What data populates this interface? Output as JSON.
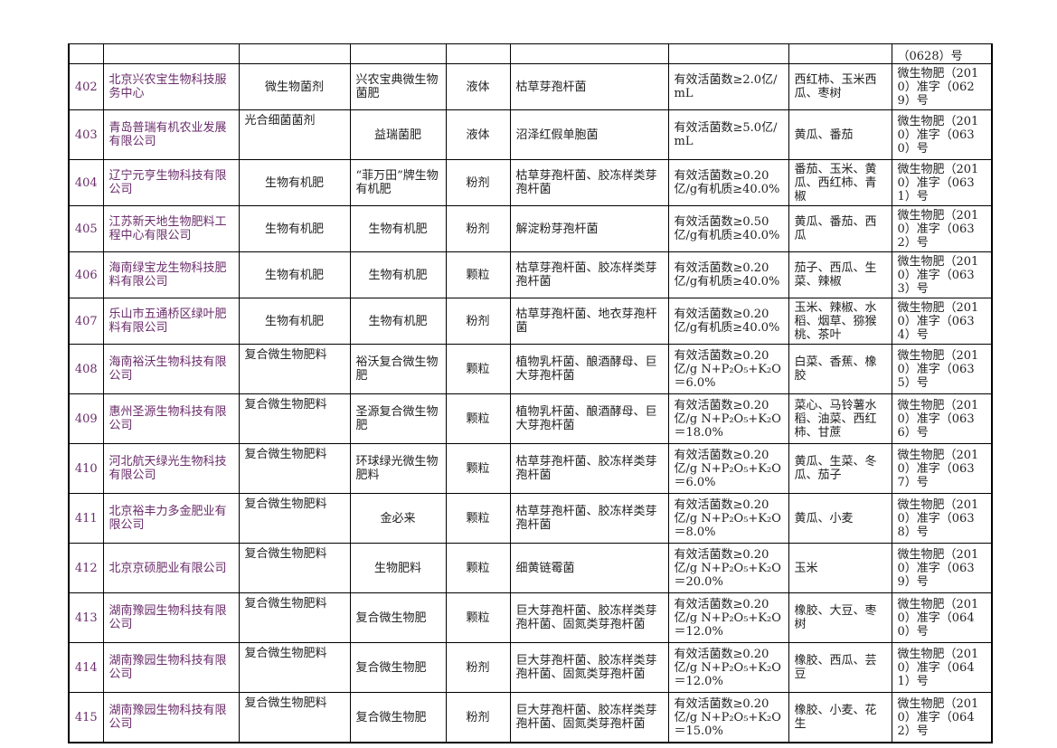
{
  "table": {
    "continued_row": {
      "approval_tail": "（0628）号"
    },
    "rows": [
      [
        402,
        "北京兴农宝生物科技服务中心",
        "微生物菌剂",
        "兴农宝典微生物菌肥",
        "液体",
        "枯草芽孢杆菌",
        "有效活菌数≥2.0亿/mL",
        "西红柿、玉米西瓜、枣树",
        "微生物肥（2010）准字（0629）号"
      ],
      [
        403,
        "青岛普瑞有机农业发展有限公司",
        "光合细菌菌剂",
        "益瑞菌肥",
        "液体",
        "沼泽红假单胞菌",
        "有效活菌数≥5.0亿/mL",
        "黄瓜、番茄",
        "微生物肥（2010）准字（0630）号"
      ],
      [
        404,
        "辽宁元亨生物科技有限公司",
        "生物有机肥",
        "“菲万田”牌生物有机肥",
        "粉剂",
        "枯草芽孢杆菌、胶冻样类芽孢杆菌",
        "有效活菌数≥0.20亿/g有机质≥40.0%",
        "番茄、玉米、黄瓜、西红柿、青椒",
        "微生物肥（2010）准字（0631）号"
      ],
      [
        405,
        "江苏新天地生物肥料工程中心有限公司",
        "生物有机肥",
        "生物有机肥",
        "粉剂",
        "解淀粉芽孢杆菌",
        "有效活菌数≥0.50亿/g有机质≥40.0%",
        "黄瓜、番茄、西瓜",
        "微生物肥（2010）准字（0632）号"
      ],
      [
        406,
        "海南绿宝龙生物科技肥料有限公司",
        "生物有机肥",
        "生物有机肥",
        "颗粒",
        "枯草芽孢杆菌、胶冻样类芽孢杆菌",
        "有效活菌数≥0.20亿/g有机质≥40.0%",
        "茄子、西瓜、生菜、辣椒",
        "微生物肥（2010）准字（0633）号"
      ],
      [
        407,
        "乐山市五通桥区绿叶肥料有限公司",
        "生物有机肥",
        "生物有机肥",
        "粉剂",
        "枯草芽孢杆菌、地衣芽孢杆菌",
        "有效活菌数≥0.20亿/g有机质≥40.0%",
        "玉米、辣椒、水稻、烟草、猕猴桃、茶叶",
        "微生物肥（2010）准字（0634）号"
      ],
      [
        408,
        "海南裕沃生物科技有限公司",
        "复合微生物肥料",
        "裕沃复合微生物肥",
        "颗粒",
        "植物乳杆菌、酿酒酵母、巨大芽孢杆菌",
        "有效活菌数≥0.20亿/g N+P₂O₅+K₂O＝6.0%",
        "白菜、香蕉、橡胶",
        "微生物肥（2010）准字（0635）号"
      ],
      [
        409,
        "惠州圣源生物科技有限公司",
        "复合微生物肥料",
        "圣源复合微生物肥",
        "颗粒",
        "植物乳杆菌、酿酒酵母、巨大芽孢杆菌",
        "有效活菌数≥0.20亿/g N+P₂O₅+K₂O＝18.0%",
        "菜心、马铃薯水稻、油菜、西红柿、甘蔗",
        "微生物肥（2010）准字（0636）号"
      ],
      [
        410,
        "河北航天绿光生物科技有限公司",
        "复合微生物肥料",
        "环球绿光微生物肥料",
        "颗粒",
        "枯草芽孢杆菌、胶冻样类芽孢杆菌",
        "有效活菌数≥0.20亿/g N+P₂O₅+K₂O＝6.0%",
        "黄瓜、生菜、冬瓜、茄子",
        "微生物肥（2010）准字（0637）号"
      ],
      [
        411,
        "北京裕丰力多金肥业有限公司",
        "复合微生物肥料",
        "金必来",
        "颗粒",
        "枯草芽孢杆菌、胶冻样类芽孢杆菌",
        "有效活菌数≥0.20亿/g N+P₂O₅+K₂O＝8.0%",
        "黄瓜、小麦",
        "微生物肥（2010）准字（0638）号"
      ],
      [
        412,
        "北京京硕肥业有限公司",
        "复合微生物肥料",
        "生物肥料",
        "颗粒",
        "细黄链霉菌",
        "有效活菌数≥0.20亿/g N+P₂O₅+K₂O＝20.0%",
        "玉米",
        "微生物肥（2010）准字（0639）号"
      ],
      [
        413,
        "湖南豫园生物科技有限公司",
        "复合微生物肥料",
        "复合微生物肥",
        "颗粒",
        "巨大芽孢杆菌、胶冻样类芽孢杆菌、固氮类芽孢杆菌",
        "有效活菌数≥0.20亿/g N+P₂O₅+K₂O＝12.0%",
        "橡胶、大豆、枣树",
        "微生物肥（2010）准字（0640）号"
      ],
      [
        414,
        "湖南豫园生物科技有限公司",
        "复合微生物肥料",
        "复合微生物肥",
        "粉剂",
        "巨大芽孢杆菌、胶冻样类芽孢杆菌、固氮类芽孢杆菌",
        "有效活菌数≥0.20亿/g N+P₂O₅+K₂O＝12.0%",
        "橡胶、西瓜、芸豆",
        "微生物肥（2010）准字（0641）号"
      ],
      [
        415,
        "湖南豫园生物科技有限公司",
        "复合微生物肥料",
        "复合微生物肥",
        "粉剂",
        "巨大芽孢杆菌、胶冻样类芽孢杆菌、固氮类芽孢杆菌",
        "有效活菌数≥0.20亿/g N+P₂O₅+K₂O＝15.0%",
        "橡胶、小麦、花生",
        "微生物肥（2010）准字（0642）号"
      ]
    ]
  }
}
